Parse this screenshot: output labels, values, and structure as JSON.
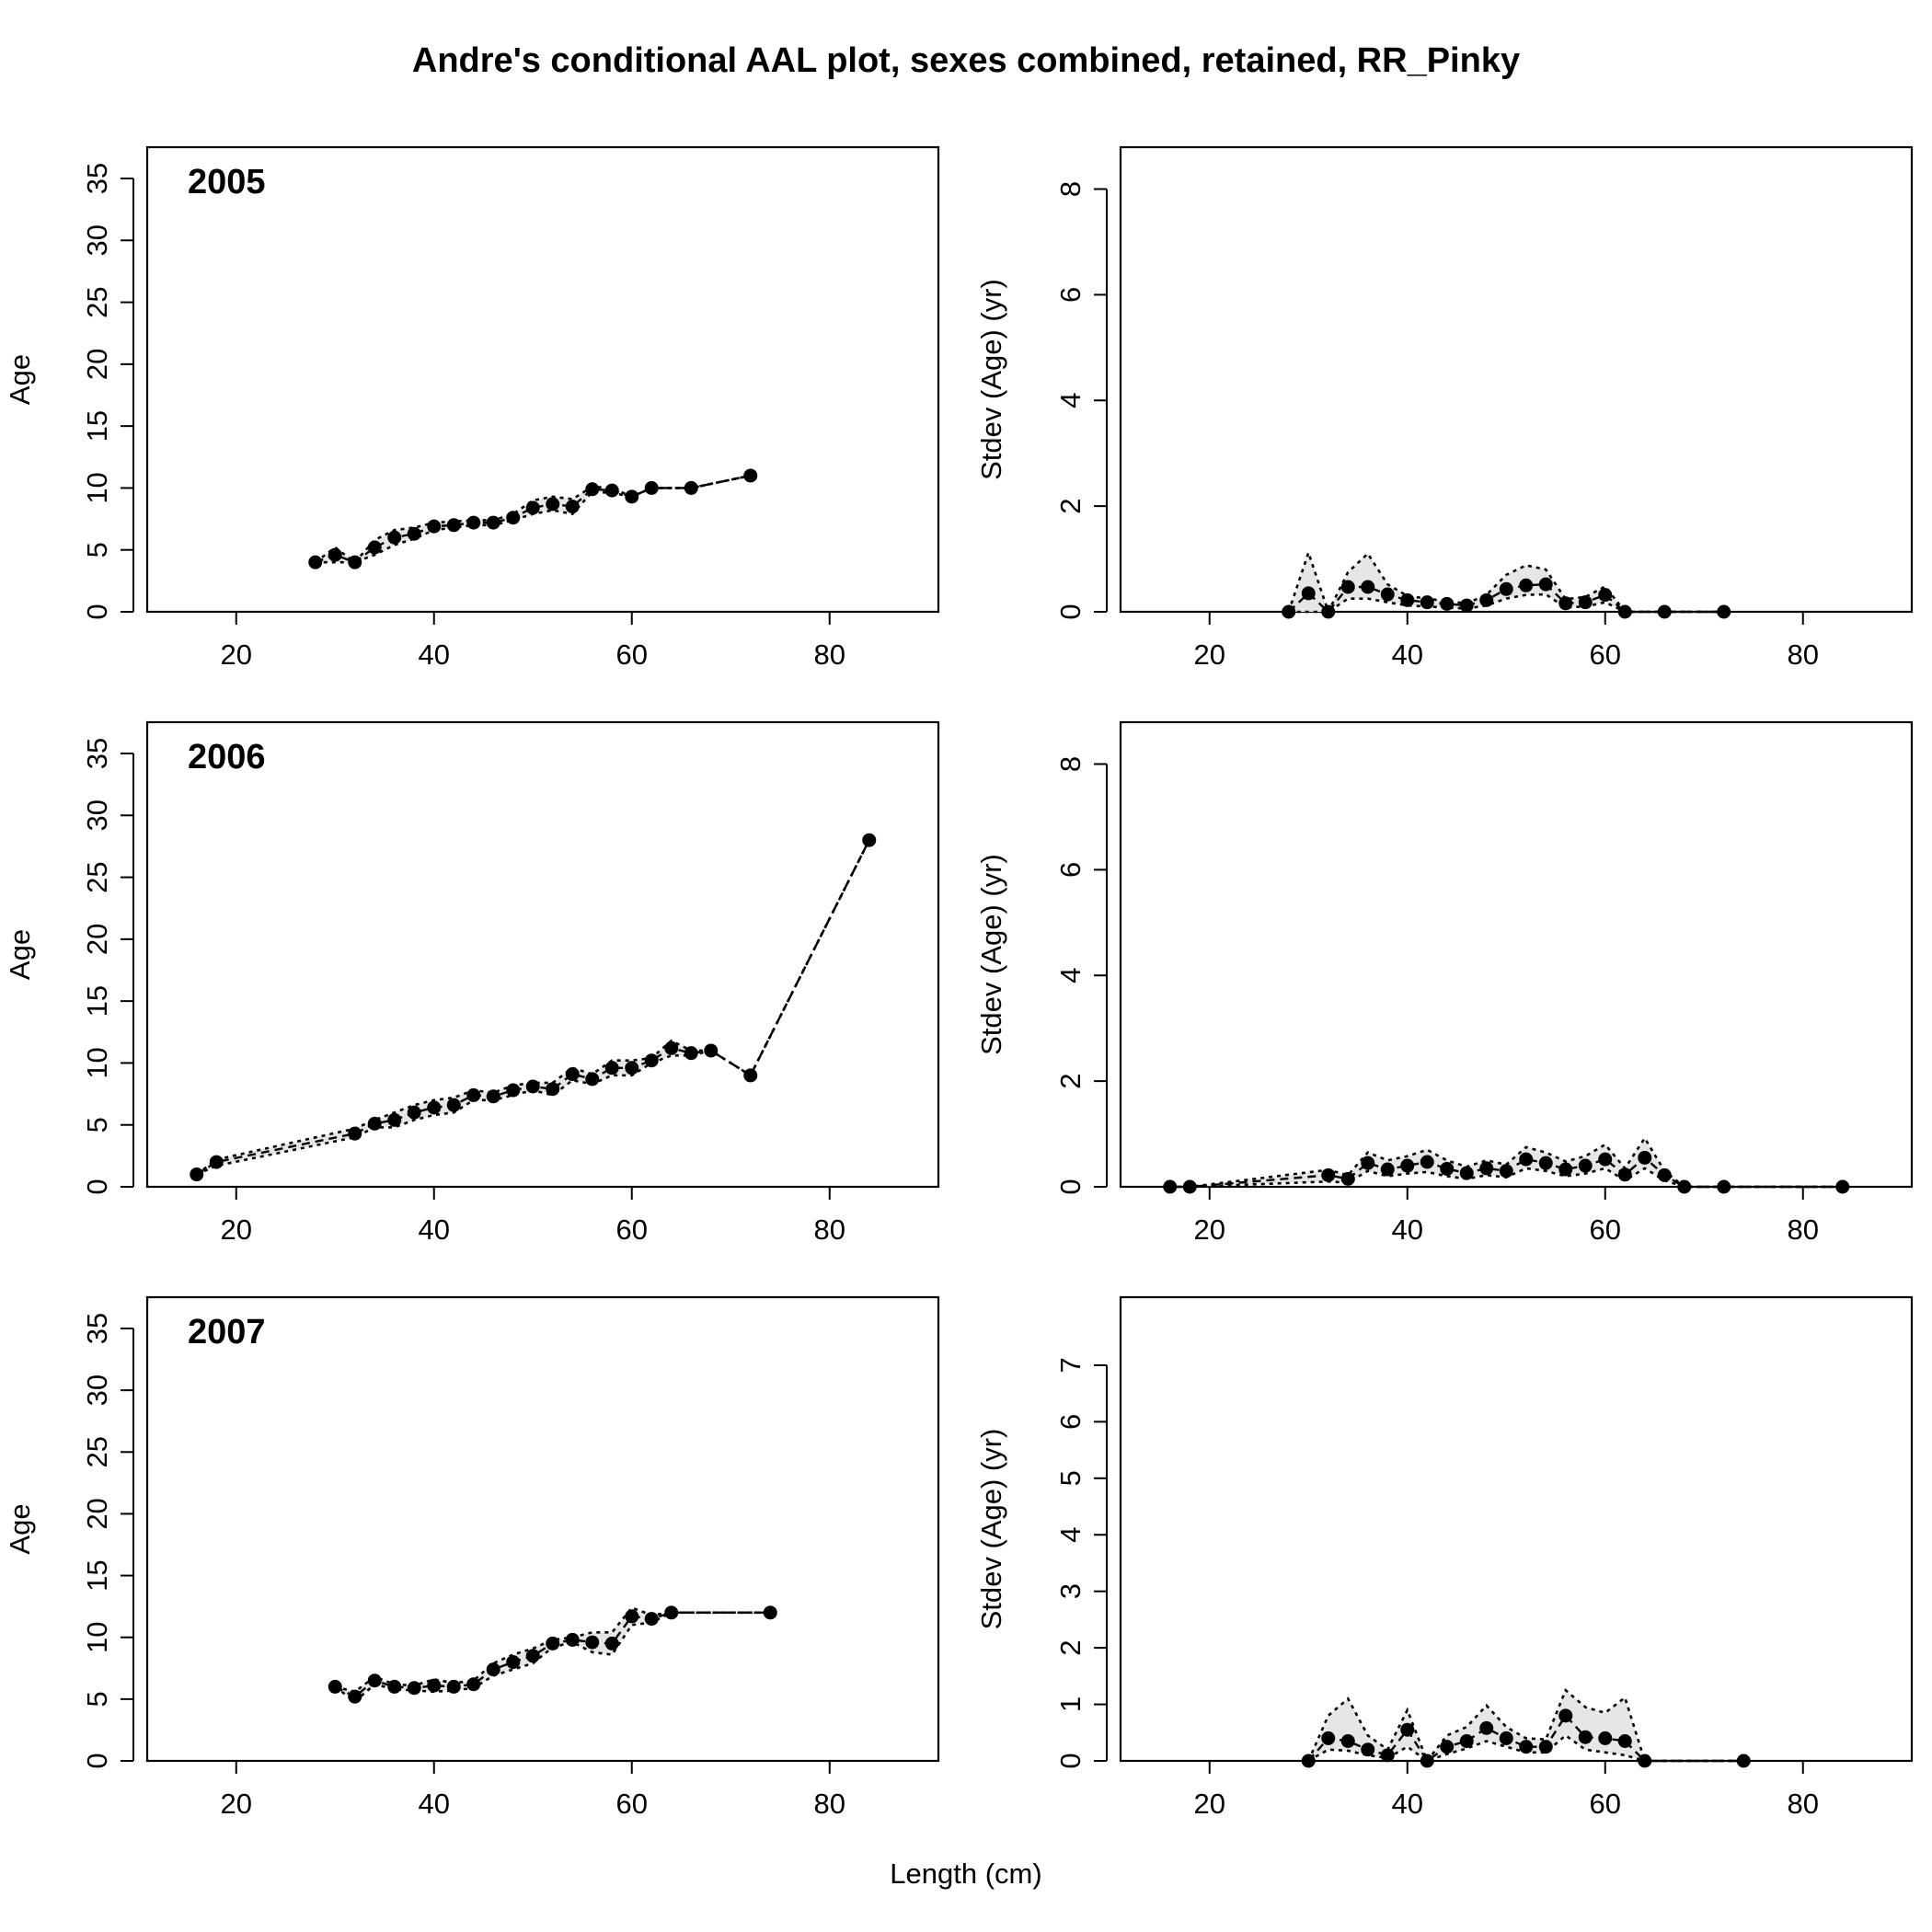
{
  "chart_data": {
    "type": "scatter",
    "title": "Andre's conditional AAL plot, sexes combined, retained, RR_Pinky",
    "xlabel": "Length (cm)",
    "xlim": [
      11,
      91
    ],
    "xticks": [
      20,
      40,
      60,
      80
    ],
    "panels": [
      {
        "year": "2005",
        "age": {
          "ylabel": "Age",
          "ylim": [
            0,
            35
          ],
          "yticks": [
            0,
            5,
            10,
            15,
            20,
            25,
            30,
            35
          ],
          "x": [
            28,
            30,
            32,
            34,
            36,
            38,
            40,
            42,
            44,
            46,
            48,
            50,
            52,
            54,
            56,
            58,
            60,
            62,
            66,
            72
          ],
          "y": [
            4.0,
            4.6,
            4.0,
            5.2,
            6.0,
            6.3,
            6.9,
            7.0,
            7.2,
            7.2,
            7.6,
            8.4,
            8.7,
            8.5,
            9.9,
            9.8,
            9.3,
            10.0,
            10.0,
            11.0
          ],
          "lo": [
            4.0,
            4.0,
            4.0,
            4.6,
            5.4,
            5.9,
            6.6,
            6.8,
            7.0,
            7.0,
            7.4,
            7.9,
            8.2,
            7.9,
            9.7,
            9.6,
            9.3,
            10.0,
            10.0,
            11.0
          ],
          "hi": [
            4.0,
            5.2,
            4.0,
            5.8,
            6.6,
            6.8,
            7.2,
            7.3,
            7.4,
            7.4,
            7.9,
            9.0,
            9.3,
            9.1,
            10.1,
            10.0,
            9.3,
            10.0,
            10.0,
            11.0
          ]
        },
        "sd": {
          "ylabel": "Stdev (Age) (yr)",
          "ylim": [
            0,
            8.2
          ],
          "yticks": [
            0,
            2,
            4,
            6,
            8
          ],
          "x": [
            28,
            30,
            32,
            34,
            36,
            38,
            40,
            42,
            44,
            46,
            48,
            50,
            52,
            54,
            56,
            58,
            60,
            62,
            66,
            72
          ],
          "y": [
            0.0,
            0.35,
            0.0,
            0.47,
            0.47,
            0.33,
            0.22,
            0.18,
            0.15,
            0.12,
            0.22,
            0.43,
            0.5,
            0.52,
            0.16,
            0.18,
            0.32,
            0.0,
            0.0,
            0.0
          ],
          "lo": [
            0.0,
            0.0,
            0.0,
            0.25,
            0.25,
            0.18,
            0.12,
            0.1,
            0.08,
            0.06,
            0.12,
            0.25,
            0.32,
            0.33,
            0.08,
            0.1,
            0.18,
            0.0,
            0.0,
            0.0
          ],
          "hi": [
            0.0,
            1.12,
            0.0,
            0.75,
            1.1,
            0.52,
            0.3,
            0.25,
            0.2,
            0.16,
            0.32,
            0.7,
            0.88,
            0.8,
            0.24,
            0.28,
            0.48,
            0.0,
            0.0,
            0.0
          ]
        }
      },
      {
        "year": "2006",
        "age": {
          "ylabel": "Age",
          "ylim": [
            0,
            35
          ],
          "yticks": [
            0,
            5,
            10,
            15,
            20,
            25,
            30,
            35
          ],
          "x": [
            16,
            18,
            32,
            34,
            36,
            38,
            40,
            42,
            44,
            46,
            48,
            50,
            52,
            54,
            56,
            58,
            60,
            62,
            64,
            66,
            68,
            72,
            84
          ],
          "y": [
            1.0,
            2.0,
            4.3,
            5.1,
            5.4,
            6.0,
            6.4,
            6.6,
            7.4,
            7.3,
            7.8,
            8.1,
            7.9,
            9.1,
            8.7,
            9.6,
            9.6,
            10.2,
            11.2,
            10.8,
            11.0,
            9.0,
            28.0
          ],
          "lo": [
            1.0,
            1.7,
            4.0,
            4.8,
            4.8,
            5.4,
            5.8,
            6.0,
            7.0,
            7.0,
            7.4,
            7.8,
            7.4,
            8.6,
            8.3,
            9.0,
            9.0,
            10.0,
            10.6,
            10.6,
            11.0,
            9.0,
            28.0
          ],
          "hi": [
            1.0,
            2.2,
            4.7,
            5.4,
            6.0,
            6.6,
            7.0,
            7.2,
            7.8,
            7.6,
            8.2,
            8.4,
            8.4,
            9.6,
            9.1,
            10.2,
            10.2,
            10.4,
            11.8,
            11.0,
            11.0,
            9.0,
            28.0
          ]
        },
        "sd": {
          "ylabel": "Stdev (Age) (yr)",
          "ylim": [
            0,
            8.2
          ],
          "yticks": [
            0,
            2,
            4,
            6,
            8
          ],
          "x": [
            16,
            18,
            32,
            34,
            36,
            38,
            40,
            42,
            44,
            46,
            48,
            50,
            52,
            54,
            56,
            58,
            60,
            62,
            64,
            66,
            68,
            72,
            84
          ],
          "y": [
            0.0,
            0.0,
            0.22,
            0.15,
            0.45,
            0.33,
            0.4,
            0.47,
            0.34,
            0.26,
            0.35,
            0.3,
            0.52,
            0.45,
            0.33,
            0.4,
            0.52,
            0.23,
            0.55,
            0.22,
            0.0,
            0.0,
            0.0
          ],
          "lo": [
            0.0,
            0.0,
            0.1,
            0.08,
            0.3,
            0.2,
            0.25,
            0.28,
            0.2,
            0.15,
            0.22,
            0.18,
            0.35,
            0.3,
            0.2,
            0.25,
            0.35,
            0.12,
            0.35,
            0.12,
            0.0,
            0.0,
            0.0
          ],
          "hi": [
            0.0,
            0.0,
            0.32,
            0.22,
            0.65,
            0.5,
            0.58,
            0.7,
            0.5,
            0.38,
            0.5,
            0.42,
            0.75,
            0.65,
            0.48,
            0.58,
            0.8,
            0.35,
            0.92,
            0.3,
            0.0,
            0.0,
            0.0
          ]
        }
      },
      {
        "year": "2007",
        "age": {
          "ylabel": "Age",
          "ylim": [
            0,
            35
          ],
          "yticks": [
            0,
            5,
            10,
            15,
            20,
            25,
            30,
            35
          ],
          "x": [
            30,
            32,
            34,
            36,
            38,
            40,
            42,
            44,
            46,
            48,
            50,
            52,
            54,
            56,
            58,
            60,
            62,
            64,
            74
          ],
          "y": [
            6.0,
            5.2,
            6.5,
            6.0,
            5.9,
            6.1,
            6.0,
            6.2,
            7.4,
            8.0,
            8.5,
            9.5,
            9.8,
            9.6,
            9.5,
            11.7,
            11.5,
            12.0,
            12.0
          ],
          "lo": [
            6.0,
            4.8,
            6.2,
            5.8,
            5.7,
            5.6,
            5.7,
            5.9,
            6.9,
            7.4,
            7.9,
            9.2,
            9.6,
            8.8,
            8.6,
            11.0,
            11.2,
            12.0,
            12.0
          ],
          "hi": [
            6.0,
            5.6,
            6.8,
            6.2,
            6.1,
            6.6,
            6.3,
            6.5,
            7.9,
            8.6,
            9.1,
            9.8,
            10.0,
            10.4,
            10.4,
            12.4,
            11.8,
            12.0,
            12.0
          ]
        },
        "sd": {
          "ylabel": "Stdev (Age) (yr)",
          "ylim": [
            0,
            7.65
          ],
          "yticks": [
            0,
            1,
            2,
            3,
            4,
            5,
            6,
            7
          ],
          "x": [
            30,
            32,
            34,
            36,
            38,
            40,
            42,
            44,
            46,
            48,
            50,
            52,
            54,
            56,
            58,
            60,
            62,
            64,
            74
          ],
          "y": [
            0.0,
            0.4,
            0.35,
            0.2,
            0.1,
            0.55,
            0.0,
            0.25,
            0.35,
            0.58,
            0.4,
            0.25,
            0.25,
            0.8,
            0.42,
            0.4,
            0.35,
            0.0,
            0.0
          ],
          "lo": [
            0.0,
            0.2,
            0.18,
            0.1,
            0.05,
            0.25,
            0.0,
            0.12,
            0.22,
            0.35,
            0.25,
            0.15,
            0.15,
            0.45,
            0.2,
            0.15,
            0.1,
            0.0,
            0.0
          ],
          "hi": [
            0.0,
            0.8,
            1.1,
            0.45,
            0.2,
            0.9,
            0.0,
            0.45,
            0.6,
            0.98,
            0.6,
            0.4,
            0.38,
            1.25,
            0.95,
            0.85,
            1.12,
            0.0,
            0.0
          ]
        }
      }
    ]
  }
}
